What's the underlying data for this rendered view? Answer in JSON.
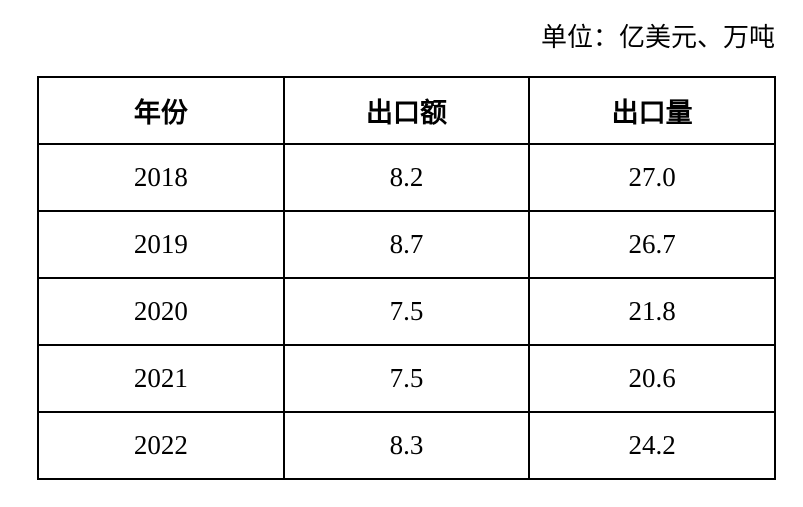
{
  "unit": "单位：亿美元、万吨",
  "table": {
    "headers": [
      "年份",
      "出口额",
      "出口量"
    ],
    "rows": [
      [
        "2018",
        "8.2",
        "27.0"
      ],
      [
        "2019",
        "8.7",
        "26.7"
      ],
      [
        "2020",
        "7.5",
        "21.8"
      ],
      [
        "2021",
        "7.5",
        "20.6"
      ],
      [
        "2022",
        "8.3",
        "24.2"
      ]
    ]
  }
}
